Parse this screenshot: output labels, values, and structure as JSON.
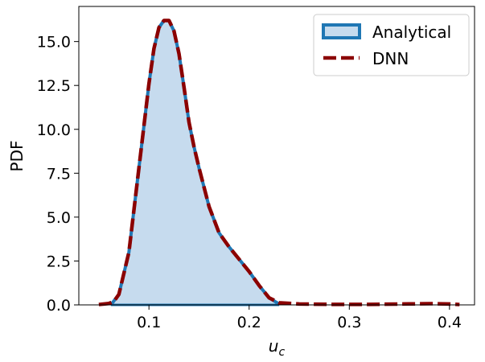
{
  "chart_data": {
    "type": "area",
    "xlabel": "u",
    "xlabel_sub": "c",
    "ylabel": "PDF",
    "xlim": [
      0.03,
      0.425
    ],
    "ylim": [
      0,
      17.0
    ],
    "xticks": [
      0.1,
      0.2,
      0.3,
      0.4
    ],
    "xtick_labels": [
      "0.1",
      "0.2",
      "0.3",
      "0.4"
    ],
    "yticks": [
      0,
      2.5,
      5,
      7.5,
      10,
      12.5,
      15
    ],
    "ytick_labels": [
      "0.0",
      "2.5",
      "5.0",
      "7.5",
      "10.0",
      "12.5",
      "15.0"
    ],
    "grid": false,
    "legend_position": "top-right",
    "series": [
      {
        "name": "Analytical",
        "style": "filled-area",
        "line_color": "#1f77b4",
        "fill_color": "#c6dbee",
        "x": [
          0.062,
          0.07,
          0.08,
          0.09,
          0.1,
          0.105,
          0.11,
          0.115,
          0.12,
          0.125,
          0.13,
          0.135,
          0.14,
          0.145,
          0.15,
          0.16,
          0.17,
          0.18,
          0.19,
          0.2,
          0.21,
          0.22,
          0.23
        ],
        "y": [
          0.0,
          0.6,
          3.0,
          7.8,
          12.6,
          14.6,
          15.8,
          16.2,
          16.2,
          15.6,
          14.3,
          12.4,
          10.4,
          9.0,
          7.8,
          5.6,
          4.1,
          3.3,
          2.6,
          1.9,
          1.1,
          0.4,
          0.05
        ]
      },
      {
        "name": "DNN",
        "style": "dashed-line",
        "line_color": "#8b0000",
        "x": [
          0.05,
          0.06,
          0.065,
          0.07,
          0.08,
          0.09,
          0.1,
          0.105,
          0.11,
          0.115,
          0.12,
          0.125,
          0.13,
          0.135,
          0.14,
          0.145,
          0.15,
          0.16,
          0.17,
          0.18,
          0.19,
          0.2,
          0.21,
          0.22,
          0.23,
          0.25,
          0.28,
          0.3,
          0.32,
          0.35,
          0.37,
          0.38,
          0.4,
          0.41
        ],
        "y": [
          0.02,
          0.08,
          0.2,
          0.6,
          3.0,
          7.8,
          12.6,
          14.6,
          15.8,
          16.2,
          16.2,
          15.6,
          14.3,
          12.4,
          10.4,
          9.0,
          7.8,
          5.6,
          4.1,
          3.3,
          2.6,
          1.9,
          1.1,
          0.4,
          0.12,
          0.05,
          0.03,
          0.03,
          0.03,
          0.05,
          0.06,
          0.07,
          0.05,
          0.02
        ]
      }
    ]
  }
}
